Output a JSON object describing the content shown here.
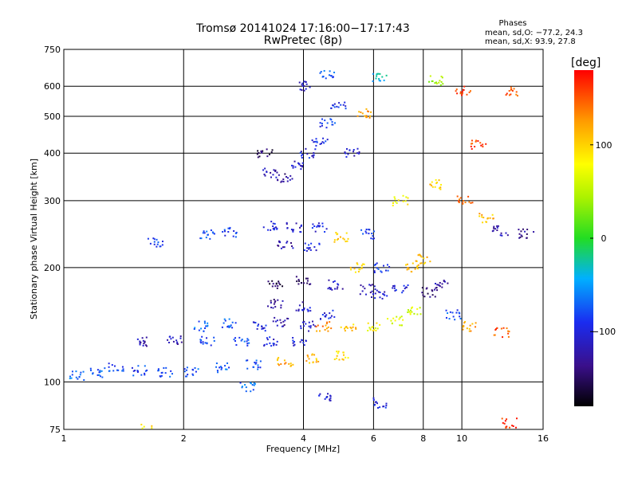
{
  "chart_data": {
    "type": "scatter",
    "title": "Tromsø 20141024 17:16:00−17:17:43",
    "subtitle": "RwPretec (8p)",
    "xlabel": "Frequency [MHz]",
    "ylabel": "Stationary phase Virtual Height [km]",
    "xscale": "log",
    "yscale": "log",
    "xlim": [
      1,
      16
    ],
    "ylim": [
      75,
      750
    ],
    "x_ticks": [
      1,
      2,
      4,
      6,
      8,
      10,
      16
    ],
    "x_tick_labels": [
      "1",
      "2",
      "4",
      "6",
      "8",
      "10",
      "16"
    ],
    "y_ticks": [
      75,
      100,
      200,
      300,
      400,
      500,
      600,
      750
    ],
    "y_tick_labels": [
      "75",
      "100",
      "200",
      "300",
      "400",
      "500",
      "600",
      "750"
    ],
    "grid": true,
    "phase_block": {
      "heading": "Phases",
      "line_o": "mean, sd,O: −77.2, 24.3",
      "line_x": "mean, sd,X:  93.9, 27.8"
    },
    "colorbar": {
      "label": "[deg]",
      "range": [
        -180,
        180
      ],
      "tick_values": [
        100,
        0,
        -100
      ],
      "tick_labels": [
        "100",
        "0",
        "−100"
      ]
    },
    "clusters": [
      {
        "f": 1.08,
        "h": 104,
        "phase": -70
      },
      {
        "f": 1.22,
        "h": 106,
        "phase": -75
      },
      {
        "f": 1.35,
        "h": 110,
        "phase": -80
      },
      {
        "f": 1.55,
        "h": 107,
        "phase": -85
      },
      {
        "f": 1.8,
        "h": 106,
        "phase": -80
      },
      {
        "f": 2.1,
        "h": 106,
        "phase": -75
      },
      {
        "f": 2.5,
        "h": 109,
        "phase": -70
      },
      {
        "f": 3.0,
        "h": 111,
        "phase": -80
      },
      {
        "f": 3.6,
        "h": 113,
        "phase": 120
      },
      {
        "f": 4.2,
        "h": 115,
        "phase": 110
      },
      {
        "f": 5.0,
        "h": 117,
        "phase": 95
      },
      {
        "f": 1.6,
        "h": 128,
        "phase": -120
      },
      {
        "f": 1.9,
        "h": 128,
        "phase": -115
      },
      {
        "f": 2.3,
        "h": 128,
        "phase": -90
      },
      {
        "f": 2.8,
        "h": 128,
        "phase": -80
      },
      {
        "f": 3.3,
        "h": 128,
        "phase": -100
      },
      {
        "f": 3.9,
        "h": 127,
        "phase": -105
      },
      {
        "f": 2.2,
        "h": 140,
        "phase": -70
      },
      {
        "f": 2.6,
        "h": 142,
        "phase": -75
      },
      {
        "f": 3.1,
        "h": 140,
        "phase": -100
      },
      {
        "f": 3.5,
        "h": 144,
        "phase": -120
      },
      {
        "f": 4.1,
        "h": 140,
        "phase": -110
      },
      {
        "f": 3.4,
        "h": 160,
        "phase": -130
      },
      {
        "f": 4.0,
        "h": 158,
        "phase": -110
      },
      {
        "f": 4.6,
        "h": 150,
        "phase": -100
      },
      {
        "f": 3.4,
        "h": 180,
        "phase": -150
      },
      {
        "f": 4.0,
        "h": 185,
        "phase": -140
      },
      {
        "f": 4.8,
        "h": 180,
        "phase": -110
      },
      {
        "f": 5.8,
        "h": 175,
        "phase": -120
      },
      {
        "f": 4.5,
        "h": 140,
        "phase": 130
      },
      {
        "f": 5.2,
        "h": 138,
        "phase": 105
      },
      {
        "f": 6.0,
        "h": 140,
        "phase": 80
      },
      {
        "f": 6.8,
        "h": 145,
        "phase": 70
      },
      {
        "f": 7.6,
        "h": 155,
        "phase": 60
      },
      {
        "f": 6.2,
        "h": 170,
        "phase": -110
      },
      {
        "f": 7.0,
        "h": 175,
        "phase": -100
      },
      {
        "f": 8.3,
        "h": 172,
        "phase": -140
      },
      {
        "f": 8.9,
        "h": 180,
        "phase": -120
      },
      {
        "f": 5.5,
        "h": 200,
        "phase": 100
      },
      {
        "f": 6.3,
        "h": 200,
        "phase": -90
      },
      {
        "f": 7.5,
        "h": 200,
        "phase": 115
      },
      {
        "f": 8.0,
        "h": 210,
        "phase": 110
      },
      {
        "f": 1.7,
        "h": 233,
        "phase": -90
      },
      {
        "f": 2.3,
        "h": 245,
        "phase": -80
      },
      {
        "f": 2.6,
        "h": 248,
        "phase": -85
      },
      {
        "f": 3.3,
        "h": 258,
        "phase": -100
      },
      {
        "f": 3.8,
        "h": 255,
        "phase": -110
      },
      {
        "f": 4.4,
        "h": 255,
        "phase": -100
      },
      {
        "f": 3.6,
        "h": 230,
        "phase": -120
      },
      {
        "f": 4.2,
        "h": 225,
        "phase": -100
      },
      {
        "f": 5.0,
        "h": 240,
        "phase": 100
      },
      {
        "f": 5.8,
        "h": 245,
        "phase": -90
      },
      {
        "f": 3.3,
        "h": 355,
        "phase": -120
      },
      {
        "f": 3.6,
        "h": 345,
        "phase": -130
      },
      {
        "f": 3.9,
        "h": 370,
        "phase": -110
      },
      {
        "f": 4.1,
        "h": 400,
        "phase": -100
      },
      {
        "f": 4.4,
        "h": 430,
        "phase": -95
      },
      {
        "f": 4.6,
        "h": 480,
        "phase": -85
      },
      {
        "f": 4.9,
        "h": 530,
        "phase": -90
      },
      {
        "f": 5.7,
        "h": 510,
        "phase": 120
      },
      {
        "f": 5.3,
        "h": 400,
        "phase": -110
      },
      {
        "f": 3.2,
        "h": 400,
        "phase": -150
      },
      {
        "f": 7.0,
        "h": 300,
        "phase": 80
      },
      {
        "f": 8.5,
        "h": 330,
        "phase": 100
      },
      {
        "f": 10.2,
        "h": 300,
        "phase": 140
      },
      {
        "f": 11.5,
        "h": 270,
        "phase": 110
      },
      {
        "f": 12.5,
        "h": 250,
        "phase": -120
      },
      {
        "f": 14.5,
        "h": 245,
        "phase": -130
      },
      {
        "f": 11.0,
        "h": 420,
        "phase": 160
      },
      {
        "f": 13.2,
        "h": 580,
        "phase": 150
      },
      {
        "f": 10.1,
        "h": 585,
        "phase": 160
      },
      {
        "f": 8.6,
        "h": 620,
        "phase": 40
      },
      {
        "f": 6.2,
        "h": 630,
        "phase": -40
      },
      {
        "f": 4.0,
        "h": 600,
        "phase": -110
      },
      {
        "f": 4.6,
        "h": 640,
        "phase": -80
      },
      {
        "f": 9.5,
        "h": 150,
        "phase": -80
      },
      {
        "f": 10.5,
        "h": 140,
        "phase": 120
      },
      {
        "f": 12.6,
        "h": 135,
        "phase": 150
      },
      {
        "f": 13.2,
        "h": 78,
        "phase": 160
      },
      {
        "f": 6.2,
        "h": 88,
        "phase": -100
      },
      {
        "f": 4.5,
        "h": 92,
        "phase": -100
      },
      {
        "f": 1.6,
        "h": 75,
        "phase": 90
      },
      {
        "f": 2.9,
        "h": 97,
        "phase": -70
      }
    ]
  }
}
